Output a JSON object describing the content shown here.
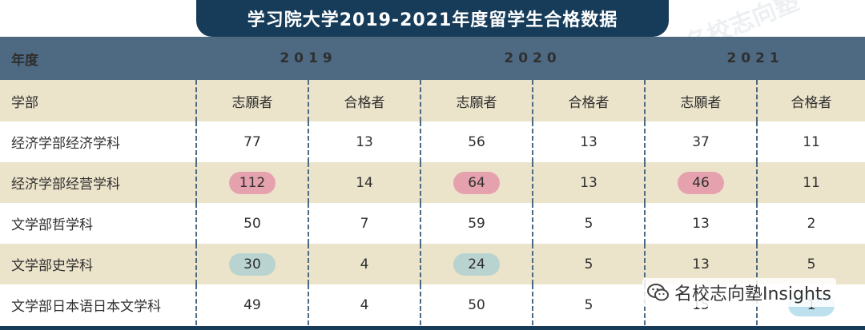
{
  "title": "学习院大学2019-2021年度留学生合格数据",
  "header": {
    "year_label": "年度",
    "years": [
      "2019",
      "2020",
      "2021"
    ]
  },
  "subheader": {
    "dept_label": "学部",
    "applicants_label": "志願者",
    "passed_label": "合格者"
  },
  "rows": [
    {
      "dept": "经济学部经济学科",
      "values": [
        "77",
        "13",
        "56",
        "13",
        "37",
        "11"
      ]
    },
    {
      "dept": "经济学部经营学科",
      "values": [
        "112",
        "14",
        "64",
        "13",
        "46",
        "11"
      ]
    },
    {
      "dept": "文学部哲学科",
      "values": [
        "50",
        "7",
        "59",
        "5",
        "13",
        "2"
      ]
    },
    {
      "dept": "文学部史学科",
      "values": [
        "30",
        "4",
        "24",
        "5",
        "13",
        "5"
      ]
    },
    {
      "dept": "文学部日本语日本文学科",
      "values": [
        "49",
        "4",
        "50",
        "5",
        "15",
        "1"
      ]
    }
  ],
  "highlight_colors": {
    "pink": "#e5a2ae",
    "teal": "#b9d3d0",
    "blue": "#bde0ee"
  },
  "watermark": "名校志向塾",
  "brand": {
    "text": "名校志向塾Insights",
    "icon": "wechat-icon"
  },
  "colors": {
    "title_bg": "#173c5a",
    "header_bg": "#4d6a82",
    "stripe_bg": "#ebe3ca"
  }
}
